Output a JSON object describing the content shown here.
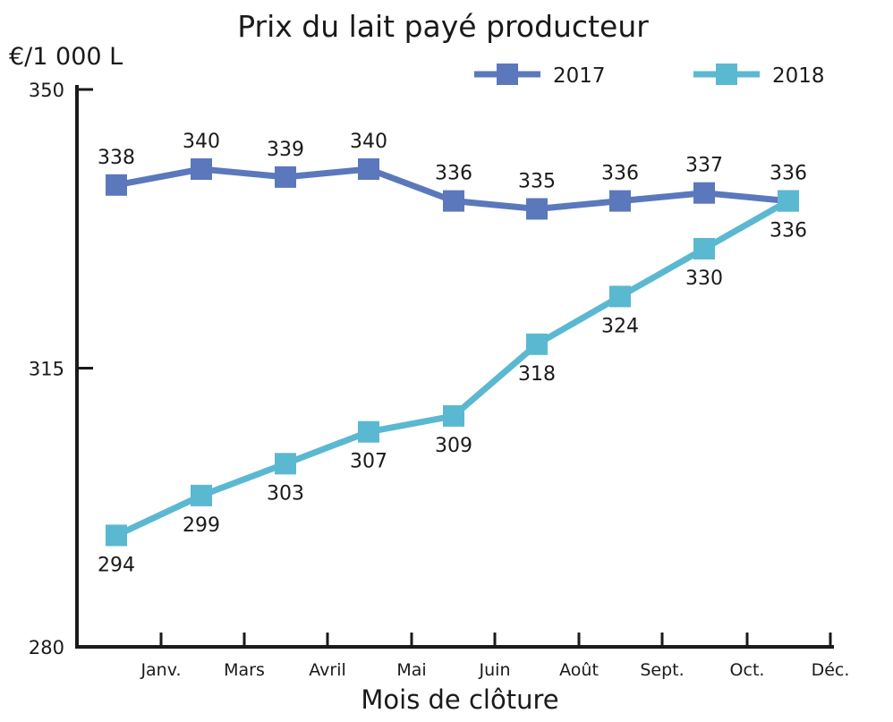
{
  "chart_data": {
    "type": "line",
    "title": "Prix du lait payé producteur",
    "ylabel": "€/1 000 L",
    "xlabel": "Mois de clôture",
    "ylim": [
      280,
      350
    ],
    "yticks": [
      "350",
      "315",
      "280"
    ],
    "xtick_labels": [
      "Janv.",
      "Mars",
      "Avril",
      "Mai",
      "Juin",
      "Août",
      "Sept.",
      "Oct.",
      "Déc."
    ],
    "legend_position": "top-right",
    "series": [
      {
        "name": "2017",
        "color": "#5b78bc",
        "values": [
          338,
          340,
          339,
          340,
          336,
          335,
          336,
          337,
          336
        ],
        "labels": [
          "338",
          "340",
          "339",
          "340",
          "336",
          "335",
          "336",
          "337",
          "336"
        ],
        "label_position": "above"
      },
      {
        "name": "2018",
        "color": "#5bb8d1",
        "values": [
          294,
          299,
          303,
          307,
          309,
          318,
          324,
          330,
          336
        ],
        "labels": [
          "294",
          "299",
          "303",
          "307",
          "309",
          "318",
          "324",
          "330",
          "336"
        ],
        "label_position": "below"
      }
    ]
  }
}
